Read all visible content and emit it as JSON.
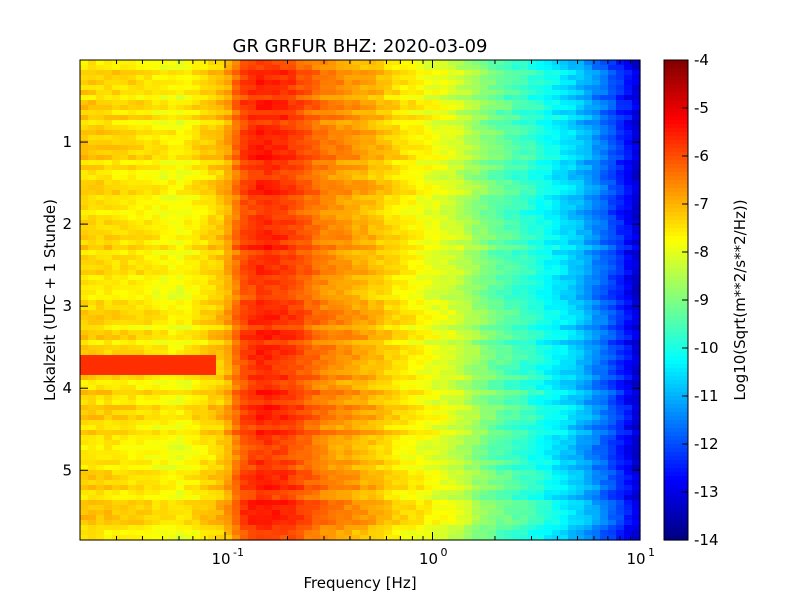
{
  "chart_data": {
    "type": "heatmap",
    "title": "GR GRFUR BHZ: 2020-03-09",
    "xlabel": "Frequency [Hz]",
    "ylabel": "Lokalzeit (UTC + 1 Stunde)",
    "xscale": "log",
    "xlim": [
      0.02,
      10
    ],
    "ylim": [
      0,
      5.85
    ],
    "y_inverted": true,
    "x_ticks": [
      {
        "value": 0.1,
        "base": "10",
        "exp": "-1"
      },
      {
        "value": 1,
        "base": "10",
        "exp": "0"
      },
      {
        "value": 10,
        "base": "10",
        "exp": "1"
      }
    ],
    "y_ticks": [
      1,
      2,
      3,
      4,
      5
    ],
    "colorbar": {
      "label": "Log10(Sqrt(m**2/s**2/Hz))",
      "min": -14,
      "max": -4,
      "ticks": [
        -4,
        -5,
        -6,
        -7,
        -8,
        -9,
        -10,
        -11,
        -12,
        -13,
        -14
      ],
      "colormap": "jet"
    },
    "spectrum_profile": {
      "freqs": [
        0.02,
        0.04,
        0.06,
        0.1,
        0.12,
        0.15,
        0.2,
        0.3,
        0.5,
        0.7,
        1.0,
        1.3,
        2.0,
        3.0,
        5.0,
        7.0,
        9.0,
        10.0
      ],
      "values": [
        -7.3,
        -7.5,
        -7.8,
        -7.1,
        -6.0,
        -5.6,
        -5.8,
        -6.5,
        -7.0,
        -7.5,
        -7.9,
        -8.2,
        -9.2,
        -9.8,
        -10.8,
        -11.8,
        -12.8,
        -13.3
      ]
    },
    "events": [
      {
        "t_start": 3.6,
        "t_end": 3.8,
        "f_max": 0.09,
        "value": -5.7
      }
    ],
    "grid": false
  }
}
